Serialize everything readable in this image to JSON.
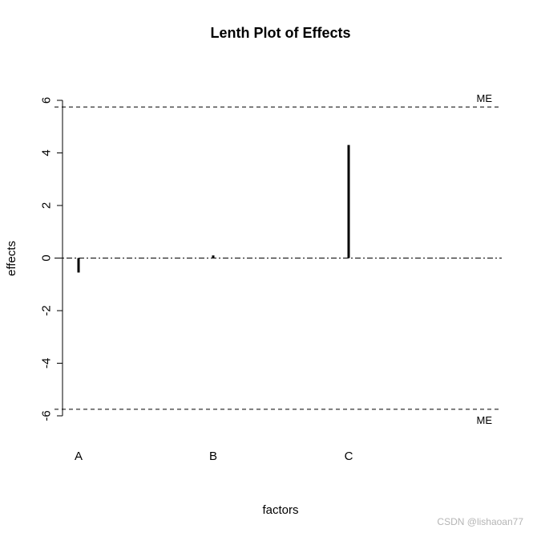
{
  "chart_data": {
    "type": "bar",
    "title": "Lenth Plot of Effects",
    "xlabel": "factors",
    "ylabel": "effects",
    "categories": [
      "A",
      "B",
      "C"
    ],
    "values": [
      -0.55,
      0.1,
      4.3
    ],
    "ylim": [
      -6,
      6
    ],
    "yticks": [
      -6,
      -4,
      -2,
      0,
      2,
      4,
      6
    ],
    "reference_lines": [
      {
        "label": "ME",
        "value": 5.75,
        "style": "dashed"
      },
      {
        "label": "ME",
        "value": -5.75,
        "style": "dashed"
      },
      {
        "label": "",
        "value": 0,
        "style": "dotdash"
      }
    ],
    "grid": false,
    "legend": "none"
  },
  "watermark": "CSDN @lishaoan77"
}
